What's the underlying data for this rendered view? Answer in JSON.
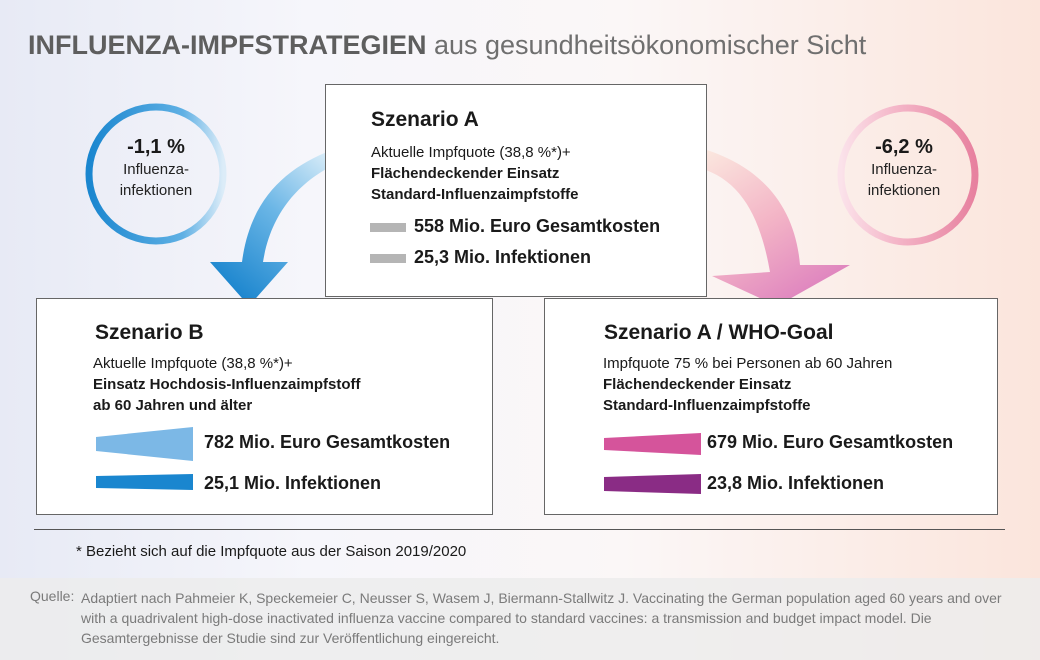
{
  "title": {
    "bold": "INFLUENZA-IMPFSTRATEGIEN",
    "rest": " aus gesundheitsökonomischer Sicht"
  },
  "left_circle": {
    "pct": "-1,1 %",
    "line1": "Influenza-",
    "line2": "infektionen",
    "color": "#1a86cf"
  },
  "right_circle": {
    "pct": "-6,2 %",
    "line1": "Influenza-",
    "line2": "infektionen",
    "color": "#e78aa8"
  },
  "scenario_a": {
    "title": "Szenario A",
    "line1": "Aktuelle Impfquote (38,8 %*)+",
    "line2": "Flächendeckender Einsatz",
    "line3": "Standard-Influenzaimpfstoffe",
    "cost": "558 Mio. Euro Gesamtkosten",
    "infections": "25,3 Mio. Infektionen",
    "cost_color": "#b5b5b5",
    "inf_color": "#b5b5b5"
  },
  "scenario_b": {
    "title": "Szenario B",
    "line1": "Aktuelle Impfquote (38,8 %*)+",
    "line2": "Einsatz Hochdosis-Influenzaimpfstoff",
    "line3": "ab 60 Jahren und älter",
    "cost": "782 Mio. Euro Gesamtkosten",
    "infections": "25,1 Mio. Infektionen",
    "cost_color": "#7cb8e6",
    "inf_color": "#1a86cf"
  },
  "scenario_who": {
    "title": "Szenario A / WHO-Goal",
    "line1": "Impfquote 75 % bei Personen ab 60 Jahren",
    "line2": "Flächendeckender Einsatz",
    "line3": "Standard-Influenzaimpfstoffe",
    "cost": "679 Mio. Euro Gesamtkosten",
    "infections": "23,8 Mio. Infektionen",
    "cost_color": "#d5549b",
    "inf_color": "#8a2c85"
  },
  "footnote": "* Bezieht sich auf die Impfquote aus der Saison 2019/2020",
  "source": {
    "label": "Quelle:",
    "text": "Adaptiert nach Pahmeier K, Speckemeier C, Neusser S, Wasem J, Biermann-Stallwitz J. Vaccinating the German population aged 60 years and over with a quadrivalent high-dose inactivated influenza vaccine compared to standard vaccines: a transmission and budget impact model. Die Gesamtergebnisse der Studie sind zur Veröffentlichung eingereicht."
  }
}
